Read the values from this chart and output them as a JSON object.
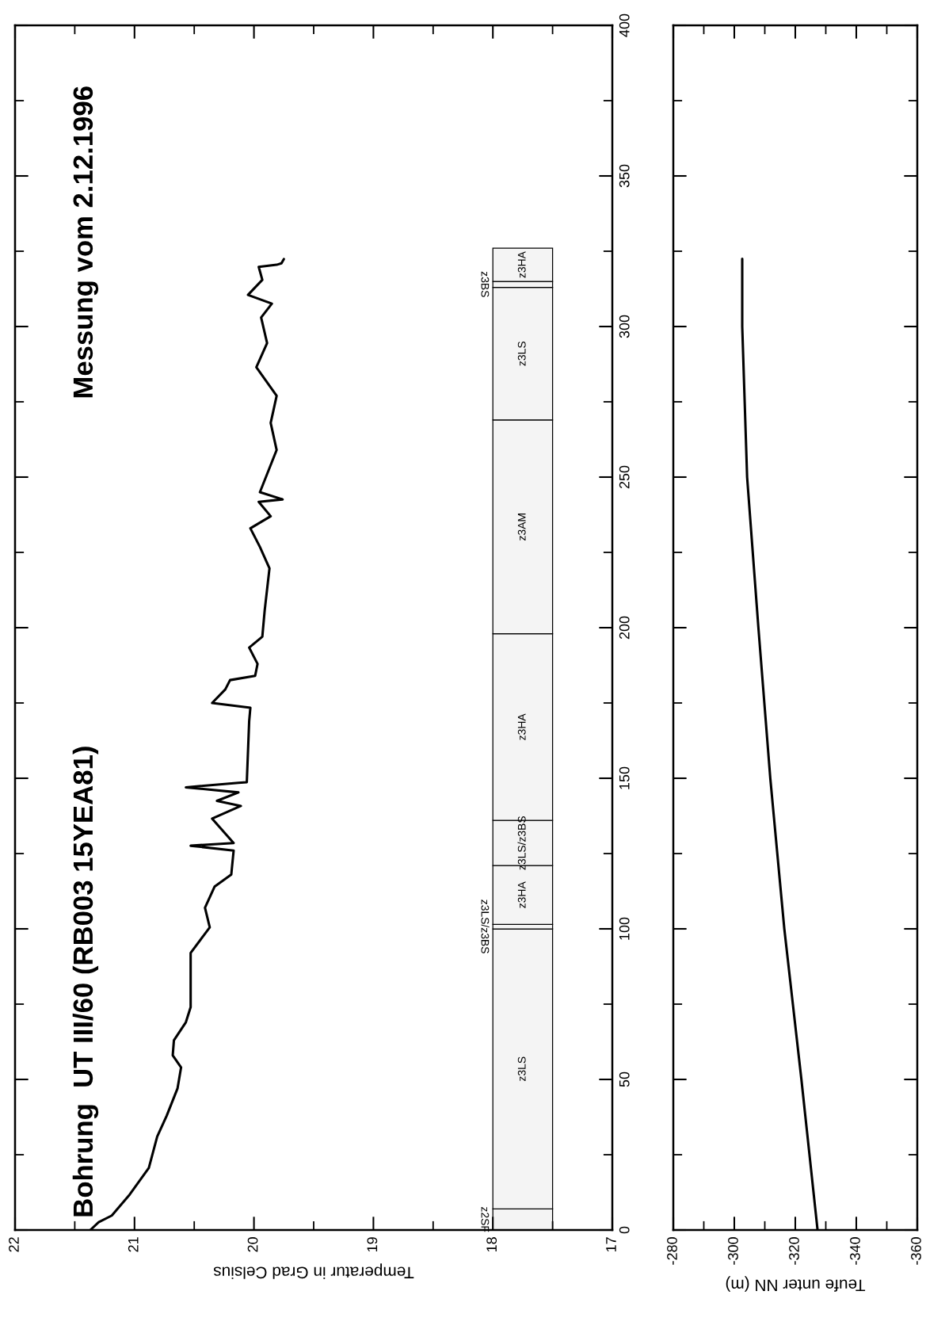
{
  "chart_data": [
    {
      "type": "line",
      "title": "Bohrung  UT III/60 (RB003 15YEA81)",
      "subtitle": "Messung vom 2.12.1996",
      "xlabel": "Temperatur in Grad Celsius",
      "ylim": [
        0,
        400
      ],
      "yticks": [
        0,
        {
          "value": 25,
          "label": null
        },
        50,
        {
          "value": 75,
          "label": null
        },
        100,
        {
          "value": 125,
          "label": null
        },
        150,
        {
          "value": 175,
          "label": null
        },
        200,
        {
          "value": 225,
          "label": null
        },
        250,
        {
          "value": 275,
          "label": null
        },
        300,
        {
          "value": 325,
          "label": null
        },
        350,
        {
          "value": 375,
          "label": null
        },
        400
      ],
      "xlim": [
        22,
        17
      ],
      "xticks": [
        17,
        {
          "value": 17.5,
          "label": null
        },
        18,
        {
          "value": 18.5,
          "label": null
        },
        19,
        {
          "value": 19.5,
          "label": null
        },
        20,
        {
          "value": 20.5,
          "label": null
        },
        21,
        {
          "value": 21.5,
          "label": null
        },
        22
      ],
      "series": [
        {
          "color": "#000000",
          "x": [
            21.37,
            21.3,
            21.19,
            21.04,
            20.88,
            20.81,
            20.73,
            20.64,
            20.61,
            20.68,
            20.67,
            20.57,
            20.53,
            20.53,
            20.53,
            20.37,
            20.41,
            20.33,
            20.19,
            20.17,
            20.53,
            20.17,
            20.35,
            20.11,
            20.31,
            20.13,
            20.57,
            20.13,
            20.06,
            20.04,
            20.03,
            20.35,
            20.24,
            20.2,
            19.99,
            19.97,
            20.04,
            19.93,
            19.91,
            19.87,
            19.95,
            20.03,
            19.86,
            19.96,
            19.76,
            19.95,
            19.81,
            19.86,
            19.81,
            19.98,
            19.89,
            19.94,
            19.85,
            20.05,
            19.93,
            19.96,
            19.81,
            19.77,
            19.75
          ],
          "values": [
            0,
            2.6,
            4.8,
            11.8,
            20.6,
            31,
            38,
            47,
            54,
            58,
            63,
            69,
            74,
            82,
            92,
            100.5,
            107,
            114,
            118,
            126,
            127.6,
            128.5,
            136.6,
            140.8,
            142.5,
            145.3,
            147,
            148.5,
            148.7,
            169,
            173.4,
            175,
            179.5,
            182.6,
            184,
            188,
            193.4,
            197,
            205.8,
            219.7,
            226.8,
            233,
            237,
            241.8,
            242.6,
            245,
            259,
            268,
            277,
            286.5,
            294.5,
            303,
            307.6,
            310.5,
            315.5,
            319.8,
            320.5,
            321,
            322.4
          ]
        }
      ],
      "bands": [
        {
          "axis": "y",
          "from": 0,
          "to": 7,
          "label": "z2SF"
        },
        {
          "axis": "y",
          "from": 7,
          "to": 100,
          "label": "z3LS"
        },
        {
          "axis": "y",
          "from": 100,
          "to": 101.5,
          "label": "z3LS/z3BS"
        },
        {
          "axis": "y",
          "from": 101.5,
          "to": 121,
          "label": "z3HA"
        },
        {
          "axis": "y",
          "from": 121,
          "to": 136,
          "label": "z3LS/z3BS"
        },
        {
          "axis": "y",
          "from": 136,
          "to": 198,
          "label": "z3HA"
        },
        {
          "axis": "y",
          "from": 198,
          "to": 269,
          "label": "z3AM"
        },
        {
          "axis": "y",
          "from": 269,
          "to": 313,
          "label": "z3LS"
        },
        {
          "axis": "y",
          "from": 313,
          "to": 315,
          "label": "z3BS"
        },
        {
          "axis": "y",
          "from": 315,
          "to": 326,
          "label": "z3HA"
        }
      ]
    },
    {
      "type": "line",
      "xlabel": "Teufe unter NN (m)",
      "tick_labels": "x",
      "ylim": [
        0,
        400
      ],
      "yticks": [
        0,
        {
          "value": 25,
          "label": null
        },
        50,
        {
          "value": 75,
          "label": null
        },
        100,
        {
          "value": 125,
          "label": null
        },
        150,
        {
          "value": 175,
          "label": null
        },
        200,
        {
          "value": 225,
          "label": null
        },
        250,
        {
          "value": 275,
          "label": null
        },
        300,
        {
          "value": 325,
          "label": null
        },
        350,
        {
          "value": 375,
          "label": null
        },
        400
      ],
      "xlim": [
        -280,
        -360
      ],
      "xticks": [
        -360,
        {
          "value": -350,
          "label": null
        },
        -340,
        {
          "value": -330,
          "label": null
        },
        -320,
        {
          "value": -310,
          "label": null
        },
        -300,
        {
          "value": -290,
          "label": null
        },
        -280
      ],
      "series": [
        {
          "color": "#000000",
          "x": [
            -327.3,
            -322,
            -316.4,
            -311.8,
            -307.9,
            -304.2,
            -302.6,
            -302.6
          ],
          "values": [
            0,
            50,
            100,
            150,
            200,
            250,
            300,
            322.5
          ]
        }
      ]
    }
  ]
}
